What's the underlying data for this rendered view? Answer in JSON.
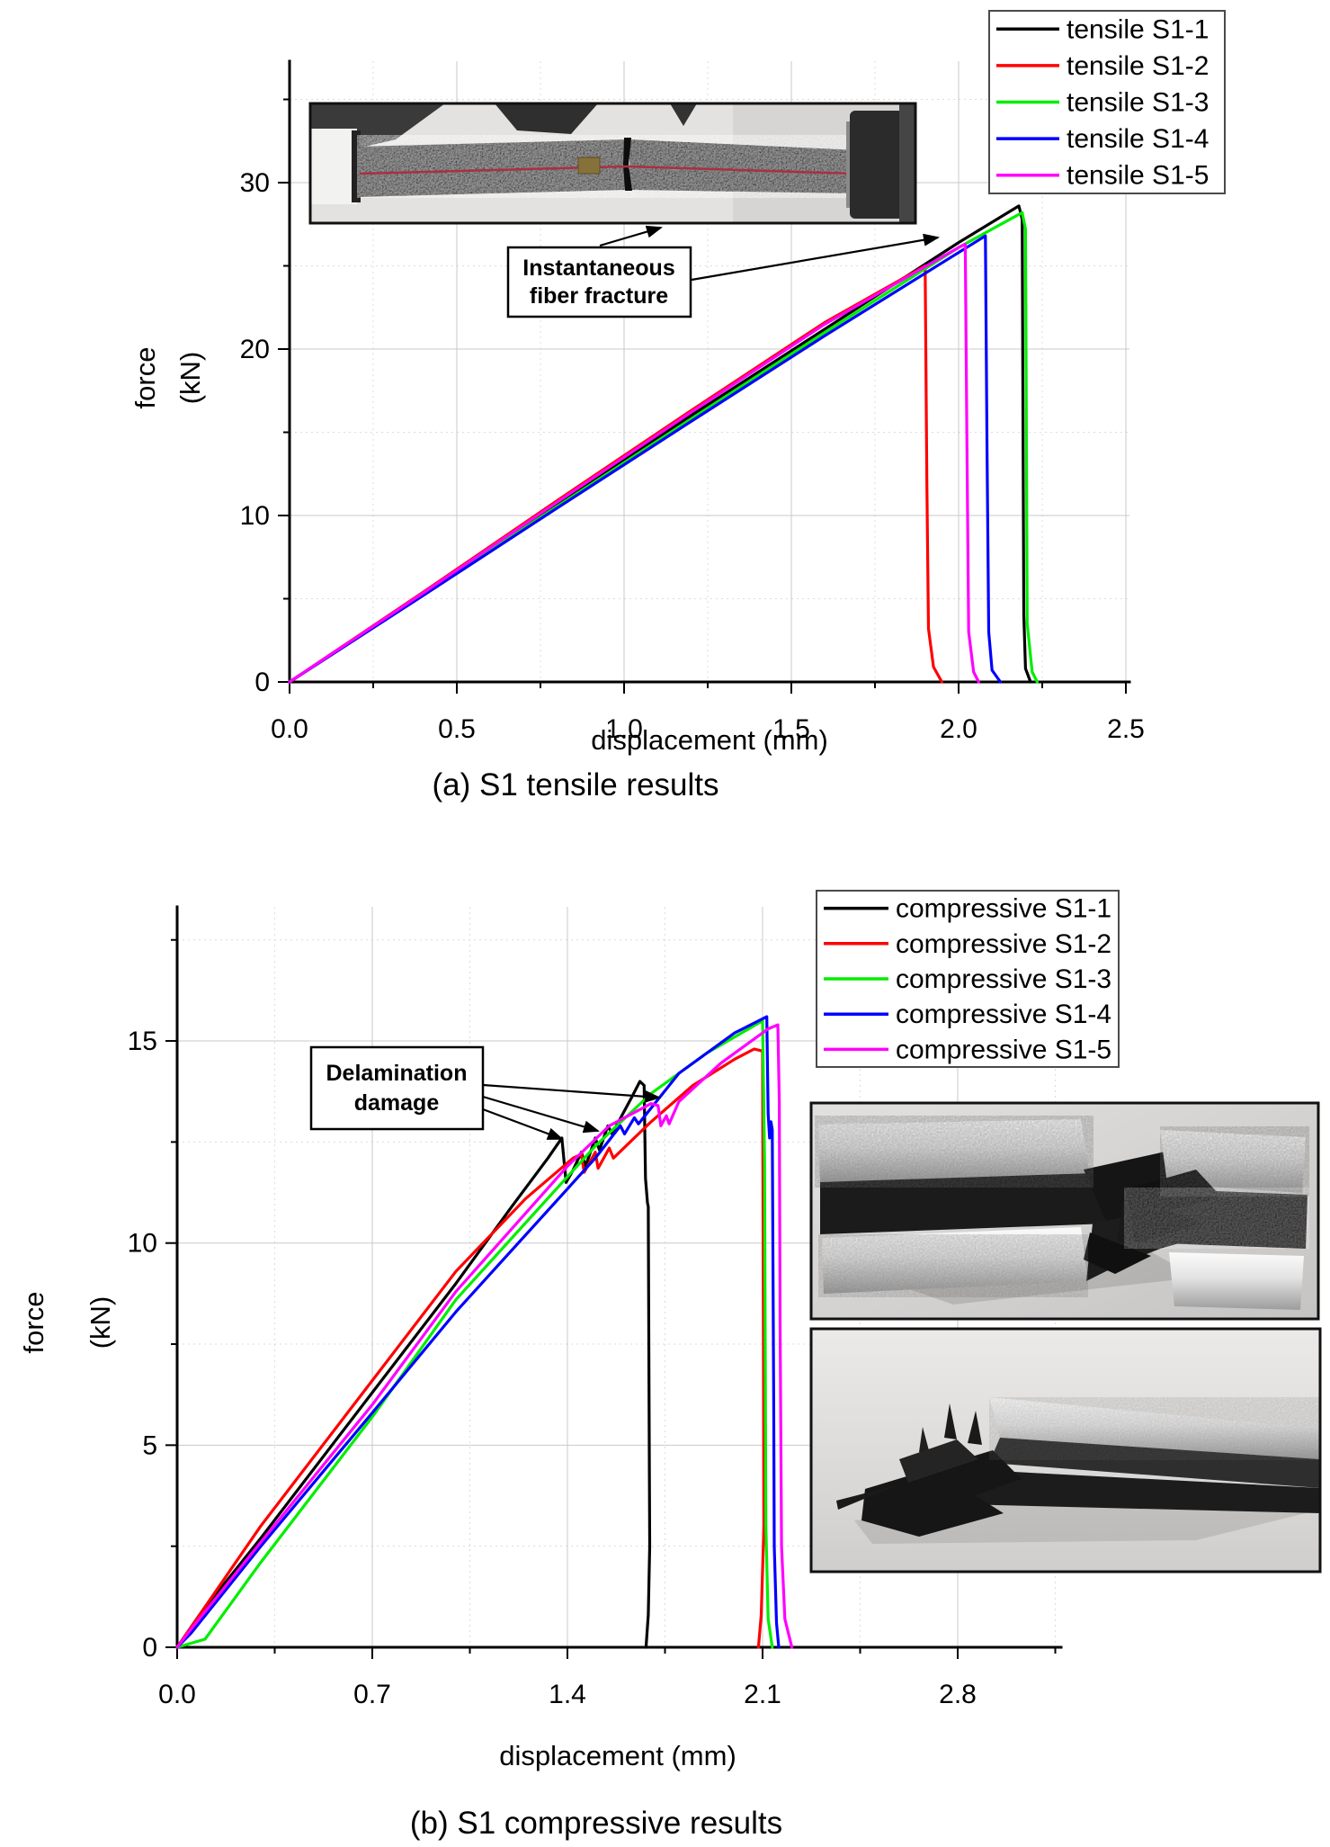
{
  "figure": {
    "background": "#ffffff",
    "curve_colors": [
      "#000000",
      "#ff0000",
      "#00ee00",
      "#0000ff",
      "#ff00ff"
    ]
  },
  "chart_data": [
    {
      "id": "tensile",
      "type": "line",
      "caption": "(a) S1 tensile results",
      "xlabel": "displacement (mm)",
      "ylabel_lines": [
        "force",
        "(kN)"
      ],
      "xlim": [
        0,
        2.51
      ],
      "ylim": [
        0,
        37.3
      ],
      "xticks": [
        0.0,
        0.5,
        1.0,
        1.5,
        2.0,
        2.5
      ],
      "xtick_labels": [
        "0.0",
        "0.5",
        "1.0",
        "1.5",
        "2.0",
        "2.5"
      ],
      "xminor": [
        0.25,
        0.75,
        1.25,
        1.75,
        2.25
      ],
      "yticks": [
        0,
        10,
        20,
        30
      ],
      "ytick_labels": [
        "0",
        "10",
        "20",
        "30"
      ],
      "yminor": [
        5,
        15,
        25,
        35
      ],
      "grid": true,
      "legend_position": "top-right",
      "annotation": {
        "lines": [
          "Instantaneous",
          "fiber fracture"
        ]
      },
      "series": [
        {
          "name": "tensile S1-1",
          "color": "#000000",
          "points": [
            [
              0,
              0
            ],
            [
              0.4,
              5.3
            ],
            [
              0.8,
              10.7
            ],
            [
              1.2,
              16.0
            ],
            [
              1.6,
              21.2
            ],
            [
              2.0,
              26.4
            ],
            [
              2.18,
              28.6
            ],
            [
              2.19,
              27.8
            ],
            [
              2.195,
              4.0
            ],
            [
              2.2,
              0.8
            ],
            [
              2.215,
              0
            ]
          ]
        },
        {
          "name": "tensile S1-2",
          "color": "#ff0000",
          "points": [
            [
              0,
              0
            ],
            [
              0.4,
              5.4
            ],
            [
              0.8,
              10.9
            ],
            [
              1.2,
              16.3
            ],
            [
              1.6,
              21.6
            ],
            [
              1.9,
              25.0
            ],
            [
              1.905,
              12.0
            ],
            [
              1.91,
              3.2
            ],
            [
              1.925,
              0.9
            ],
            [
              1.95,
              0
            ]
          ]
        },
        {
          "name": "tensile S1-3",
          "color": "#00ee00",
          "points": [
            [
              0,
              0
            ],
            [
              0.4,
              5.25
            ],
            [
              0.8,
              10.55
            ],
            [
              1.2,
              15.8
            ],
            [
              1.6,
              21.0
            ],
            [
              2.0,
              26.1
            ],
            [
              2.19,
              28.2
            ],
            [
              2.2,
              27.2
            ],
            [
              2.205,
              3.5
            ],
            [
              2.22,
              0.6
            ],
            [
              2.235,
              0
            ]
          ]
        },
        {
          "name": "tensile S1-4",
          "color": "#0000ff",
          "points": [
            [
              0,
              0
            ],
            [
              0.4,
              5.2
            ],
            [
              0.8,
              10.45
            ],
            [
              1.2,
              15.65
            ],
            [
              1.6,
              20.8
            ],
            [
              2.0,
              25.8
            ],
            [
              2.08,
              26.8
            ],
            [
              2.085,
              14.0
            ],
            [
              2.09,
              3.0
            ],
            [
              2.1,
              0.7
            ],
            [
              2.125,
              0
            ]
          ]
        },
        {
          "name": "tensile S1-5",
          "color": "#ff00ff",
          "points": [
            [
              0,
              0
            ],
            [
              0.4,
              5.35
            ],
            [
              0.8,
              10.8
            ],
            [
              1.2,
              16.2
            ],
            [
              1.6,
              21.5
            ],
            [
              2.0,
              26.1
            ],
            [
              2.02,
              26.3
            ],
            [
              2.025,
              14.0
            ],
            [
              2.03,
              3.0
            ],
            [
              2.045,
              0.6
            ],
            [
              2.06,
              0
            ]
          ]
        }
      ]
    },
    {
      "id": "compressive",
      "type": "line",
      "caption": "(b) S1 compressive results",
      "xlabel": "displacement (mm)",
      "ylabel_lines": [
        "force",
        "(kN)"
      ],
      "xlim": [
        0,
        3.17
      ],
      "ylim": [
        0,
        18.3
      ],
      "xticks": [
        0.0,
        0.7,
        1.4,
        2.1,
        2.8
      ],
      "xtick_labels": [
        "0.0",
        "0.7",
        "1.4",
        "2.1",
        "2.8"
      ],
      "xminor": [
        0.35,
        1.05,
        1.75,
        2.45,
        3.15
      ],
      "yticks": [
        0,
        5,
        10,
        15
      ],
      "ytick_labels": [
        "0",
        "5",
        "10",
        "15"
      ],
      "yminor": [
        2.5,
        7.5,
        12.5,
        17.5
      ],
      "grid": true,
      "legend_position": "top-right",
      "annotation": {
        "lines": [
          "Delamination",
          "damage"
        ]
      },
      "series": [
        {
          "name": "compressive S1-1",
          "color": "#000000",
          "points": [
            [
              0,
              0
            ],
            [
              0.08,
              0.8
            ],
            [
              0.3,
              2.7
            ],
            [
              0.7,
              6.3
            ],
            [
              1.0,
              9.0
            ],
            [
              1.2,
              10.9
            ],
            [
              1.33,
              12.1
            ],
            [
              1.38,
              12.6
            ],
            [
              1.395,
              11.5
            ],
            [
              1.42,
              11.8
            ],
            [
              1.45,
              12.25
            ],
            [
              1.465,
              11.9
            ],
            [
              1.5,
              12.6
            ],
            [
              1.515,
              12.3
            ],
            [
              1.545,
              12.9
            ],
            [
              1.56,
              12.7
            ],
            [
              1.63,
              13.6
            ],
            [
              1.66,
              14.0
            ],
            [
              1.675,
              13.9
            ],
            [
              1.68,
              11.6
            ],
            [
              1.687,
              11.0
            ],
            [
              1.69,
              10.9
            ],
            [
              1.693,
              6.0
            ],
            [
              1.695,
              2.5
            ],
            [
              1.69,
              0.8
            ],
            [
              1.682,
              0
            ]
          ]
        },
        {
          "name": "compressive S1-2",
          "color": "#ff0000",
          "points": [
            [
              0,
              0
            ],
            [
              0.05,
              0.5
            ],
            [
              0.3,
              3.0
            ],
            [
              0.7,
              6.6
            ],
            [
              1.0,
              9.3
            ],
            [
              1.25,
              11.1
            ],
            [
              1.42,
              12.1
            ],
            [
              1.45,
              12.2
            ],
            [
              1.46,
              11.75
            ],
            [
              1.5,
              12.25
            ],
            [
              1.51,
              11.85
            ],
            [
              1.55,
              12.35
            ],
            [
              1.565,
              12.1
            ],
            [
              1.7,
              13.0
            ],
            [
              1.85,
              13.9
            ],
            [
              2.0,
              14.55
            ],
            [
              2.07,
              14.8
            ],
            [
              2.1,
              14.75
            ],
            [
              2.103,
              8.0
            ],
            [
              2.105,
              3.0
            ],
            [
              2.095,
              0.8
            ],
            [
              2.085,
              0
            ]
          ]
        },
        {
          "name": "compressive S1-3",
          "color": "#00ee00",
          "points": [
            [
              0,
              0
            ],
            [
              0.1,
              0.2
            ],
            [
              0.3,
              2.1
            ],
            [
              0.7,
              5.7
            ],
            [
              1.0,
              8.6
            ],
            [
              1.5,
              12.4
            ],
            [
              1.7,
              13.7
            ],
            [
              1.9,
              14.7
            ],
            [
              2.05,
              15.3
            ],
            [
              2.1,
              15.5
            ],
            [
              2.107,
              12.0
            ],
            [
              2.112,
              3.0
            ],
            [
              2.12,
              0.7
            ],
            [
              2.135,
              0
            ]
          ]
        },
        {
          "name": "compressive S1-4",
          "color": "#0000ff",
          "points": [
            [
              0,
              0
            ],
            [
              0.05,
              0.35
            ],
            [
              0.3,
              2.5
            ],
            [
              0.7,
              5.8
            ],
            [
              1.0,
              8.3
            ],
            [
              1.5,
              12.1
            ],
            [
              1.59,
              12.9
            ],
            [
              1.605,
              12.7
            ],
            [
              1.64,
              13.1
            ],
            [
              1.655,
              12.95
            ],
            [
              1.8,
              14.2
            ],
            [
              2.0,
              15.2
            ],
            [
              2.115,
              15.6
            ],
            [
              2.12,
              13.2
            ],
            [
              2.125,
              12.6
            ],
            [
              2.13,
              13.0
            ],
            [
              2.135,
              12.8
            ],
            [
              2.14,
              6.0
            ],
            [
              2.142,
              2.5
            ],
            [
              2.15,
              0.6
            ],
            [
              2.158,
              0
            ]
          ]
        },
        {
          "name": "compressive S1-5",
          "color": "#ff00ff",
          "points": [
            [
              0,
              0
            ],
            [
              0.05,
              0.45
            ],
            [
              0.3,
              2.6
            ],
            [
              0.7,
              6.0
            ],
            [
              1.0,
              8.8
            ],
            [
              1.4,
              11.9
            ],
            [
              1.55,
              12.9
            ],
            [
              1.7,
              13.45
            ],
            [
              1.725,
              13.4
            ],
            [
              1.735,
              12.9
            ],
            [
              1.755,
              13.15
            ],
            [
              1.765,
              12.95
            ],
            [
              1.8,
              13.5
            ],
            [
              1.95,
              14.45
            ],
            [
              2.05,
              14.95
            ],
            [
              2.12,
              15.3
            ],
            [
              2.155,
              15.4
            ],
            [
              2.16,
              13.5
            ],
            [
              2.163,
              8.0
            ],
            [
              2.168,
              2.5
            ],
            [
              2.18,
              0.7
            ],
            [
              2.205,
              0
            ]
          ]
        }
      ]
    }
  ]
}
